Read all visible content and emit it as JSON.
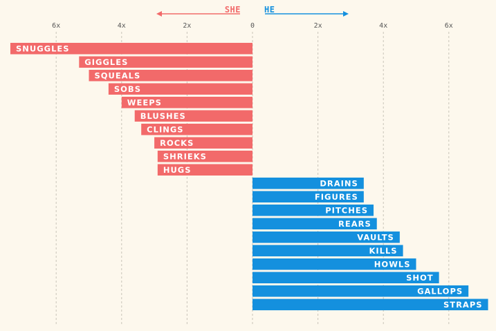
{
  "chart_data": {
    "type": "bar",
    "orientation": "horizontal-diverging",
    "title": "",
    "xlabel": "",
    "ylabel": "",
    "xlim": [
      -7.3,
      7.3
    ],
    "xticks": [
      -6,
      -4,
      -2,
      0,
      2,
      4,
      6
    ],
    "tick_labels": [
      "6x",
      "4x",
      "2x",
      "0",
      "2x",
      "4x",
      "6x"
    ],
    "direction_labels": {
      "left": "SHE",
      "right": "HE"
    },
    "colors": {
      "she": "#f26a6a",
      "he": "#1490de",
      "background": "#fdf8ed"
    },
    "series": [
      {
        "name": "SHE",
        "categories": [
          "SNUGGLES",
          "GIGGLES",
          "SQUEALS",
          "SOBS",
          "WEEPS",
          "BLUSHES",
          "CLINGS",
          "ROCKS",
          "SHRIEKS",
          "HUGS"
        ],
        "values": [
          7.4,
          5.3,
          5.0,
          4.4,
          4.0,
          3.6,
          3.4,
          3.0,
          2.9,
          2.9
        ]
      },
      {
        "name": "HE",
        "categories": [
          "DRAINS",
          "FIGURES",
          "PITCHES",
          "REARS",
          "VAULTS",
          "KILLS",
          "HOWLS",
          "SHOT",
          "GALLOPS",
          "STRAPS"
        ],
        "values": [
          3.4,
          3.4,
          3.7,
          3.8,
          4.5,
          4.6,
          5.0,
          5.7,
          6.6,
          7.2
        ]
      }
    ]
  }
}
